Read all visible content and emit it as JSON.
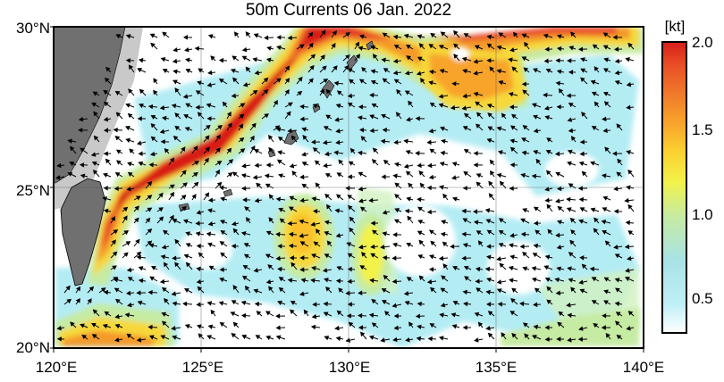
{
  "title": "50m Currents  06 Jan. 2022",
  "lat_labels": [
    "30°N",
    "25°N",
    "20°N"
  ],
  "lon_labels": [
    "120°E",
    "125°E",
    "130°E",
    "135°E",
    "140°E"
  ],
  "colorbar": {
    "unit": "[kt]",
    "ticks": [
      "2.0",
      "1.5",
      "1.0",
      "0.5"
    ],
    "colors": [
      "#ffffff",
      "#bfeff7",
      "#a8e3e6",
      "#c6eba3",
      "#f2f24a",
      "#fbd230",
      "#f8a42b",
      "#f07a2a",
      "#e94f26",
      "#d81e1a"
    ]
  },
  "map": {
    "lon_range": [
      120,
      140
    ],
    "lat_range": [
      20,
      30
    ],
    "land_color": "#707070",
    "shelf_color": "#c9c9c9",
    "regions": [
      "Taiwan",
      "China coast",
      "Ryukyu Islands"
    ]
  }
}
